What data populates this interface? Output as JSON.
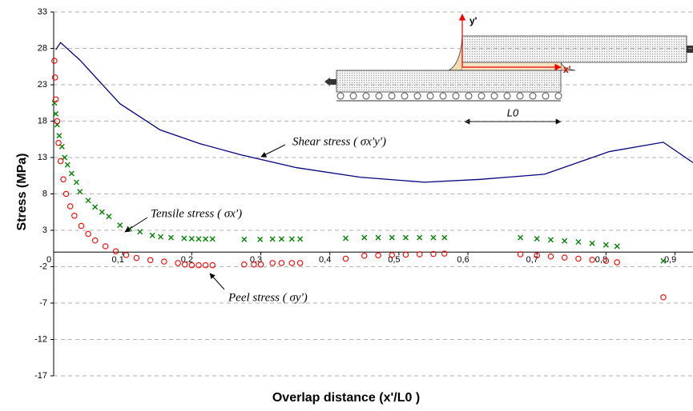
{
  "chart_data": {
    "type": "mixed",
    "ylabel": "Stress (MPa)",
    "xlabel": "Overlap distance (x'/L0 )",
    "xlim": [
      0,
      0.926
    ],
    "ylim": [
      -17,
      33
    ],
    "xticks": [
      0,
      {
        "value": 0.1,
        "label": "0,1"
      },
      {
        "value": 0.2,
        "label": "0,2"
      },
      {
        "value": 0.3,
        "label": "0,3"
      },
      {
        "value": 0.4,
        "label": "0,4"
      },
      {
        "value": 0.5,
        "label": "0,5"
      },
      {
        "value": 0.6,
        "label": "0,6"
      },
      {
        "value": 0.7,
        "label": "0,7"
      },
      {
        "value": 0.8,
        "label": "0,8"
      },
      {
        "value": 0.9,
        "label": "0,9"
      }
    ],
    "yticks": [
      -17,
      -12,
      -7,
      -2,
      3,
      8,
      13,
      18,
      23,
      28,
      33
    ],
    "grid": true,
    "inset_labels": [
      "y'",
      "x'",
      "L0"
    ],
    "series": [
      {
        "name": "Shear stress ( σx'y')",
        "type": "line",
        "color": "#000080",
        "x": [
          0.003,
          0.01,
          0.038,
          0.096,
          0.154,
          0.212,
          0.27,
          0.352,
          0.444,
          0.537,
          0.618,
          0.711,
          0.804,
          0.883,
          0.926
        ],
        "values": [
          27.8,
          28.8,
          26.4,
          20.4,
          16.8,
          14.9,
          13.4,
          11.6,
          10.3,
          9.6,
          10.0,
          10.7,
          13.8,
          15.1,
          12.3
        ]
      },
      {
        "name": "Tensile stress ( σx')",
        "type": "scatter",
        "marker": "x",
        "color": "#008000",
        "x": [
          0.001,
          0.003,
          0.005,
          0.008,
          0.012,
          0.016,
          0.02,
          0.026,
          0.033,
          0.038,
          0.05,
          0.06,
          0.07,
          0.08,
          0.096,
          0.11,
          0.125,
          0.143,
          0.155,
          0.17,
          0.189,
          0.2,
          0.21,
          0.22,
          0.23,
          0.276,
          0.299,
          0.317,
          0.33,
          0.345,
          0.357,
          0.423,
          0.45,
          0.47,
          0.49,
          0.51,
          0.53,
          0.55,
          0.566,
          0.676,
          0.7,
          0.72,
          0.74,
          0.76,
          0.78,
          0.8,
          0.816,
          0.883
        ],
        "values": [
          20.5,
          19,
          17.5,
          16,
          14.5,
          13,
          12,
          10.8,
          9.6,
          8.3,
          7.1,
          6.2,
          5.5,
          4.9,
          3.7,
          3.2,
          2.8,
          2.3,
          2.1,
          2.0,
          1.9,
          1.85,
          1.8,
          1.8,
          1.8,
          1.75,
          1.75,
          1.8,
          1.8,
          1.8,
          1.8,
          1.9,
          2.0,
          2.0,
          2.0,
          2.0,
          2.0,
          2.0,
          2.0,
          2.0,
          1.85,
          1.7,
          1.55,
          1.4,
          1.2,
          1.0,
          0.8,
          -1.2
        ]
      },
      {
        "name": "Peel stress ( σy')",
        "type": "scatter",
        "marker": "o",
        "color": "#ff0000",
        "x": [
          0.001,
          0.002,
          0.003,
          0.005,
          0.007,
          0.01,
          0.014,
          0.018,
          0.024,
          0.03,
          0.04,
          0.05,
          0.06,
          0.075,
          0.09,
          0.105,
          0.12,
          0.14,
          0.16,
          0.18,
          0.19,
          0.2,
          0.21,
          0.22,
          0.23,
          0.276,
          0.29,
          0.3,
          0.317,
          0.33,
          0.345,
          0.357,
          0.423,
          0.45,
          0.47,
          0.49,
          0.51,
          0.53,
          0.55,
          0.566,
          0.676,
          0.7,
          0.72,
          0.74,
          0.76,
          0.78,
          0.8,
          0.816,
          0.883
        ],
        "values": [
          26.3,
          24,
          21,
          18,
          15,
          12.5,
          10,
          8,
          6.3,
          5,
          3.6,
          2.5,
          1.6,
          0.8,
          0.1,
          -0.4,
          -0.8,
          -1.1,
          -1.3,
          -1.5,
          -1.7,
          -1.8,
          -1.8,
          -1.8,
          -1.8,
          -1.7,
          -1.7,
          -1.7,
          -1.5,
          -1.5,
          -1.5,
          -1.5,
          -0.9,
          -0.5,
          -0.45,
          -0.4,
          -0.35,
          -0.3,
          -0.25,
          -0.2,
          -0.3,
          -0.45,
          -0.6,
          -0.75,
          -0.9,
          -1.05,
          -1.2,
          -1.4,
          -6.2
        ]
      }
    ]
  }
}
